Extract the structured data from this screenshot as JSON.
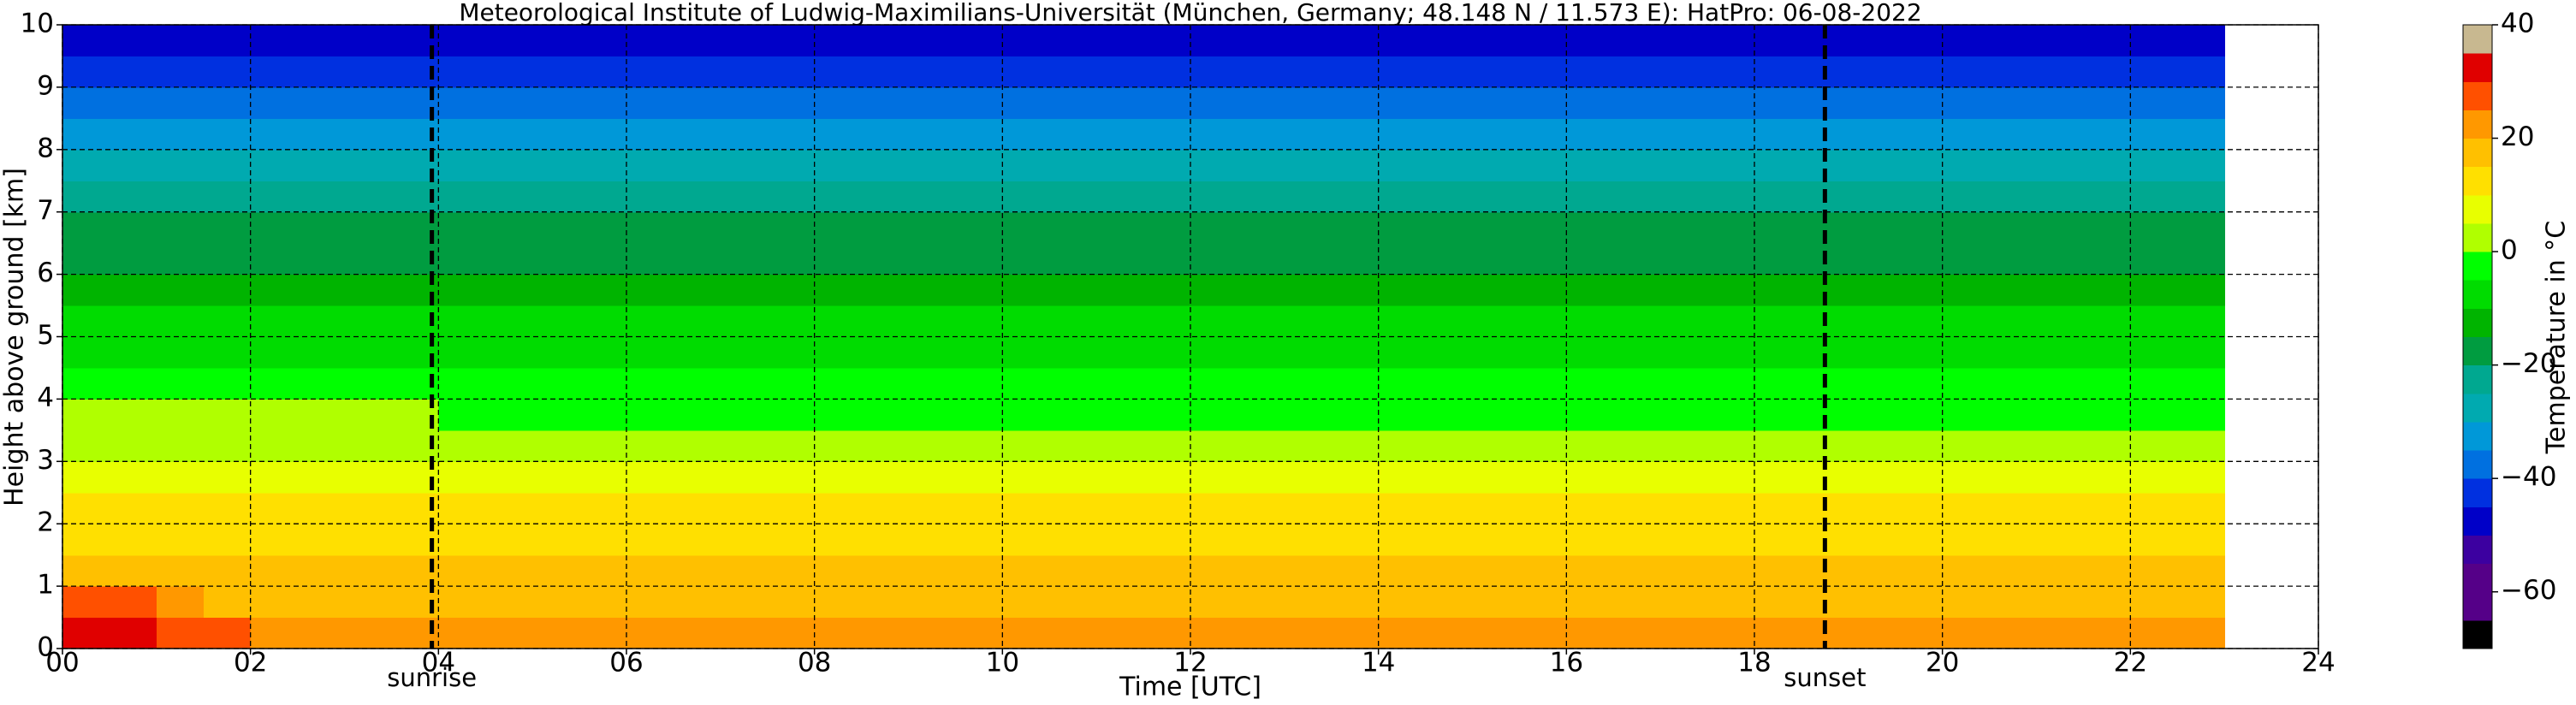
{
  "chart_data": {
    "type": "heatmap",
    "title": "Meteorological Institute of Ludwig-Maximilians-Universität (München, Germany; 48.148 N / 11.573 E):    HatPro: 06-08-2022",
    "xlabel": "Time [UTC]",
    "ylabel": "Height above ground [km]",
    "xlim": [
      0,
      24
    ],
    "ylim": [
      0,
      10
    ],
    "xticks": [
      {
        "value": 0,
        "label": "00"
      },
      {
        "value": 2,
        "label": "02"
      },
      {
        "value": 4,
        "label": "04"
      },
      {
        "value": 6,
        "label": "06"
      },
      {
        "value": 8,
        "label": "08"
      },
      10,
      12,
      14,
      16,
      18,
      20,
      22,
      24
    ],
    "yticks": [
      0,
      1,
      2,
      3,
      4,
      5,
      6,
      7,
      8,
      9,
      10
    ],
    "grid": true,
    "x_edges": [
      0,
      0.5,
      1,
      1.5,
      2,
      4,
      8,
      12,
      16,
      20,
      23
    ],
    "y_edges": [
      0,
      0.5,
      1,
      1.5,
      2,
      2.5,
      3,
      3.5,
      4,
      4.5,
      5,
      5.5,
      6,
      6.5,
      7,
      7.5,
      8,
      8.5,
      9,
      9.5,
      10
    ],
    "values": [
      [
        31,
        31,
        29,
        25,
        22,
        21,
        22,
        22,
        23,
        22
      ],
      [
        28,
        27,
        22,
        19,
        18,
        18,
        18,
        18,
        18,
        18
      ],
      [
        19,
        18,
        17,
        16,
        16,
        16,
        16,
        16,
        16,
        16
      ],
      [
        14,
        14,
        14,
        14,
        14,
        14,
        14,
        14,
        14,
        14
      ],
      [
        11,
        11,
        11,
        11,
        11,
        11,
        11,
        11,
        11,
        11
      ],
      [
        8,
        8,
        8,
        8,
        8,
        8,
        8,
        8,
        8,
        8
      ],
      [
        4,
        4,
        4,
        4,
        4,
        4,
        3,
        3,
        3,
        3
      ],
      [
        0,
        0,
        0,
        0,
        0,
        -1,
        -1,
        -1,
        -1,
        -1
      ],
      [
        -3,
        -3,
        -3,
        -3,
        -3,
        -3,
        -3,
        -3,
        -3,
        -3
      ],
      [
        -6,
        -6,
        -6,
        -6,
        -6,
        -6,
        -6,
        -6,
        -6,
        -6
      ],
      [
        -8,
        -8,
        -8,
        -8,
        -8,
        -8,
        -8,
        -8,
        -8,
        -8
      ],
      [
        -11,
        -11,
        -11,
        -11,
        -11,
        -12,
        -12,
        -12,
        -12,
        -12
      ],
      [
        -16,
        -16,
        -16,
        -16,
        -16,
        -16,
        -16,
        -16,
        -16,
        -16
      ],
      [
        -19,
        -19,
        -19,
        -19,
        -19,
        -19,
        -19,
        -19,
        -19,
        -19
      ],
      [
        -24,
        -24,
        -24,
        -24,
        -24,
        -24,
        -24,
        -24,
        -24,
        -24
      ],
      [
        -28,
        -28,
        -28,
        -28,
        -28,
        -28,
        -28,
        -28,
        -28,
        -28
      ],
      [
        -32,
        -32,
        -32,
        -32,
        -32,
        -32,
        -32,
        -32,
        -32,
        -32
      ],
      [
        -36,
        -36,
        -36,
        -36,
        -36,
        -36,
        -36,
        -36,
        -36,
        -36
      ],
      [
        -41,
        -41,
        -41,
        -41,
        -41,
        -41,
        -41,
        -41,
        -41,
        -41
      ],
      [
        -47,
        -47,
        -47,
        -47,
        -47,
        -47,
        -47,
        -47,
        -47,
        -47
      ]
    ],
    "annotations": [
      {
        "x": 3.93,
        "label": "sunrise"
      },
      {
        "x": 18.75,
        "label": "sunset"
      }
    ],
    "colorbar": {
      "label": "Temperature in °C",
      "clim": [
        -70,
        40
      ],
      "ticks": [
        {
          "value": -60,
          "label": "−60"
        },
        {
          "value": -40,
          "label": "−40"
        },
        {
          "value": -20,
          "label": "−20"
        },
        0,
        20,
        40
      ],
      "levels": [
        -70,
        -65,
        -60,
        -55,
        -50,
        -45,
        -40,
        -35,
        -30,
        -25,
        -20,
        -15,
        -10,
        -5,
        0,
        5,
        10,
        15,
        20,
        25,
        30,
        35,
        40
      ],
      "colors": [
        "#000000",
        "#550088",
        "#550088",
        "#3c00a0",
        "#0000c8",
        "#0030e0",
        "#0070e0",
        "#0098d8",
        "#00aab0",
        "#00a890",
        "#009c40",
        "#00b400",
        "#00dc00",
        "#00ff00",
        "#b0ff00",
        "#e8ff00",
        "#ffe000",
        "#ffc000",
        "#ff9800",
        "#ff5000",
        "#e00000",
        "#c8b890"
      ]
    }
  }
}
